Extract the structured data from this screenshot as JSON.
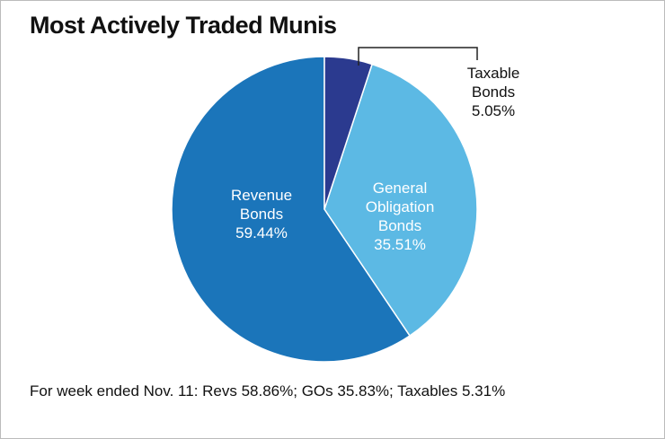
{
  "chart_data": {
    "type": "pie",
    "title": "Most Actively Traded Munis",
    "categories": [
      "Taxable Bonds",
      "General Obligation Bonds",
      "Revenue Bonds"
    ],
    "values": [
      5.05,
      35.51,
      59.44
    ],
    "value_labels": [
      "5.05%",
      "35.51%",
      "59.44%"
    ],
    "colors": [
      "#2b3a8f",
      "#5cb9e4",
      "#1b75ba"
    ],
    "footnote": "For week ended Nov. 11: Revs 58.86%; GOs 35.83%; Taxables 5.31%"
  }
}
